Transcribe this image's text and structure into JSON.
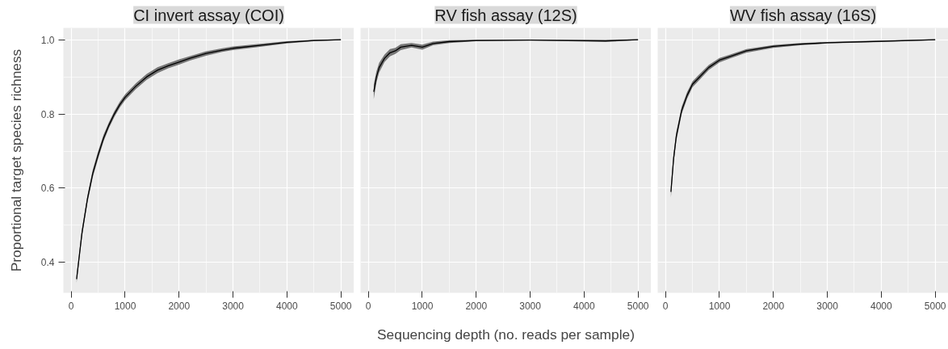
{
  "chart_data": [
    {
      "type": "line",
      "title": "CI invert assay (COI)",
      "ylabel": "Proportional target species richness",
      "xlim": [
        -145,
        5245
      ],
      "ylim": [
        0.318,
        1.032
      ],
      "xticks": [
        0,
        1000,
        2000,
        3000,
        4000,
        5000
      ],
      "yticks": [
        0.4,
        0.6,
        0.8,
        {
          "value": 1.0,
          "label": "1.0"
        }
      ],
      "grid": true,
      "marker": "none",
      "line_style": "solid",
      "series": [
        {
          "color": "#000000",
          "x": [
            100,
            200,
            300,
            400,
            500,
            600,
            700,
            800,
            900,
            1000,
            1200,
            1400,
            1600,
            1800,
            2000,
            2200,
            2500,
            2800,
            3000,
            3500,
            4000,
            4500,
            5000
          ],
          "values": [
            0.355,
            0.48,
            0.57,
            0.64,
            0.69,
            0.735,
            0.77,
            0.8,
            0.825,
            0.845,
            0.875,
            0.9,
            0.918,
            0.93,
            0.94,
            0.95,
            0.963,
            0.972,
            0.977,
            0.985,
            0.993,
            0.998,
            1.0
          ],
          "lower": [
            0.345,
            0.47,
            0.56,
            0.63,
            0.68,
            0.726,
            0.762,
            0.792,
            0.817,
            0.837,
            0.867,
            0.892,
            0.91,
            0.923,
            0.933,
            0.944,
            0.957,
            0.967,
            0.972,
            0.981,
            0.99,
            0.996,
            0.999
          ],
          "upper": [
            0.365,
            0.49,
            0.58,
            0.65,
            0.7,
            0.744,
            0.778,
            0.808,
            0.833,
            0.853,
            0.883,
            0.908,
            0.926,
            0.937,
            0.947,
            0.956,
            0.969,
            0.977,
            0.982,
            0.989,
            0.996,
            1.0,
            1.001
          ]
        }
      ]
    },
    {
      "type": "line",
      "title": "RV fish assay (12S)",
      "xlabel": "Sequencing depth (no. reads per sample)",
      "xlim": [
        -145,
        5245
      ],
      "ylim": [
        0.318,
        1.032
      ],
      "xticks": [
        0,
        1000,
        2000,
        3000,
        4000,
        5000
      ],
      "yticks": [
        0.4,
        0.6,
        0.8,
        1
      ],
      "tick_labels": "x",
      "grid": true,
      "marker": "none",
      "line_style": "solid",
      "series": [
        {
          "color": "#000000",
          "x": [
            100,
            150,
            200,
            300,
            400,
            500,
            600,
            800,
            1000,
            1200,
            1500,
            2000,
            3000,
            4400,
            5000
          ],
          "values": [
            0.86,
            0.9,
            0.925,
            0.95,
            0.965,
            0.97,
            0.98,
            0.985,
            0.98,
            0.99,
            0.995,
            0.998,
            0.999,
            0.997,
            1.0
          ],
          "lower": [
            0.84,
            0.885,
            0.912,
            0.94,
            0.955,
            0.962,
            0.972,
            0.979,
            0.973,
            0.985,
            0.991,
            0.996,
            0.998,
            0.994,
            0.999
          ],
          "upper": [
            0.88,
            0.915,
            0.938,
            0.96,
            0.975,
            0.978,
            0.988,
            0.991,
            0.987,
            0.995,
            0.999,
            1.0,
            1.0,
            1.0,
            1.001
          ]
        }
      ]
    },
    {
      "type": "line",
      "title": "WV fish assay (16S)",
      "xlim": [
        -145,
        5245
      ],
      "ylim": [
        0.318,
        1.032
      ],
      "xticks": [
        0,
        1000,
        2000,
        3000,
        4000,
        5000
      ],
      "yticks": [
        0.4,
        0.6,
        0.8,
        1
      ],
      "tick_labels": "x",
      "grid": true,
      "marker": "none",
      "line_style": "solid",
      "series": [
        {
          "color": "#000000",
          "x": [
            100,
            150,
            200,
            300,
            400,
            500,
            600,
            800,
            1000,
            1200,
            1500,
            2000,
            2500,
            3000,
            4000,
            5000
          ],
          "values": [
            0.59,
            0.68,
            0.74,
            0.81,
            0.85,
            0.88,
            0.895,
            0.925,
            0.945,
            0.955,
            0.97,
            0.982,
            0.988,
            0.992,
            0.996,
            1.0
          ],
          "lower": [
            0.575,
            0.667,
            0.728,
            0.8,
            0.841,
            0.872,
            0.887,
            0.918,
            0.939,
            0.95,
            0.965,
            0.978,
            0.985,
            0.99,
            0.994,
            0.999
          ],
          "upper": [
            0.605,
            0.693,
            0.752,
            0.82,
            0.859,
            0.888,
            0.903,
            0.932,
            0.951,
            0.96,
            0.975,
            0.986,
            0.991,
            0.994,
            0.998,
            1.001
          ]
        }
      ]
    }
  ]
}
